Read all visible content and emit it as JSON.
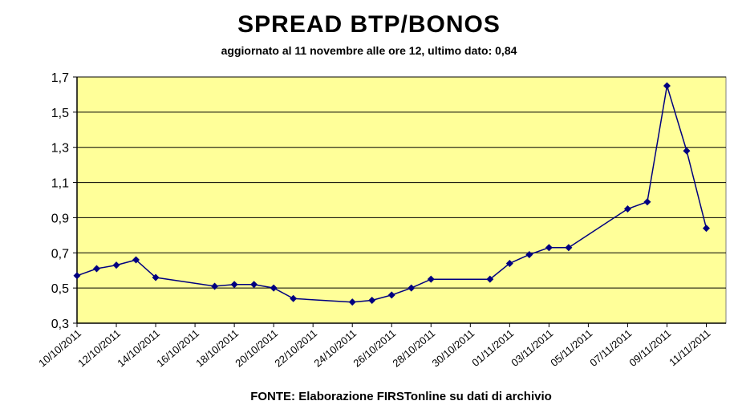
{
  "chart_data": {
    "type": "line",
    "title": "SPREAD BTP/BONOS",
    "subtitle": "aggiornato al 11 novembre alle ore 12, ultimo dato: 0,84",
    "footer": "FONTE: Elaborazione FIRSTonline su dati di archivio",
    "ylim": [
      0.3,
      1.7
    ],
    "yticks": [
      "0,3",
      "0,5",
      "0,7",
      "0,9",
      "1,1",
      "1,3",
      "1,5",
      "1,7"
    ],
    "xlim": [
      "10/10/2011",
      "12/11/2011"
    ],
    "xticks": [
      "10/10/2011",
      "12/10/2011",
      "14/10/2011",
      "16/10/2011",
      "18/10/2011",
      "20/10/2011",
      "22/10/2011",
      "24/10/2011",
      "26/10/2011",
      "28/10/2011",
      "30/10/2011",
      "01/11/2011",
      "03/11/2011",
      "05/11/2011",
      "07/11/2011",
      "09/11/2011",
      "11/11/2011"
    ],
    "grid": true,
    "plot_background": "#ffff99",
    "line_color": "#000080",
    "series": [
      {
        "x": [
          "10/10/2011",
          "11/10/2011",
          "12/10/2011",
          "13/10/2011",
          "14/10/2011",
          "17/10/2011",
          "18/10/2011",
          "19/10/2011",
          "20/10/2011",
          "21/10/2011",
          "24/10/2011",
          "25/10/2011",
          "26/10/2011",
          "27/10/2011",
          "28/10/2011",
          "31/10/2011",
          "01/11/2011",
          "02/11/2011",
          "03/11/2011",
          "04/11/2011",
          "07/11/2011",
          "08/11/2011",
          "09/11/2011",
          "10/11/2011",
          "11/11/2011"
        ],
        "values": [
          0.57,
          0.61,
          0.63,
          0.66,
          0.56,
          0.51,
          0.52,
          0.52,
          0.5,
          0.44,
          0.42,
          0.43,
          0.46,
          0.5,
          0.55,
          0.55,
          0.64,
          0.69,
          0.73,
          0.73,
          0.95,
          0.99,
          1.65,
          1.28,
          0.84
        ]
      }
    ]
  }
}
